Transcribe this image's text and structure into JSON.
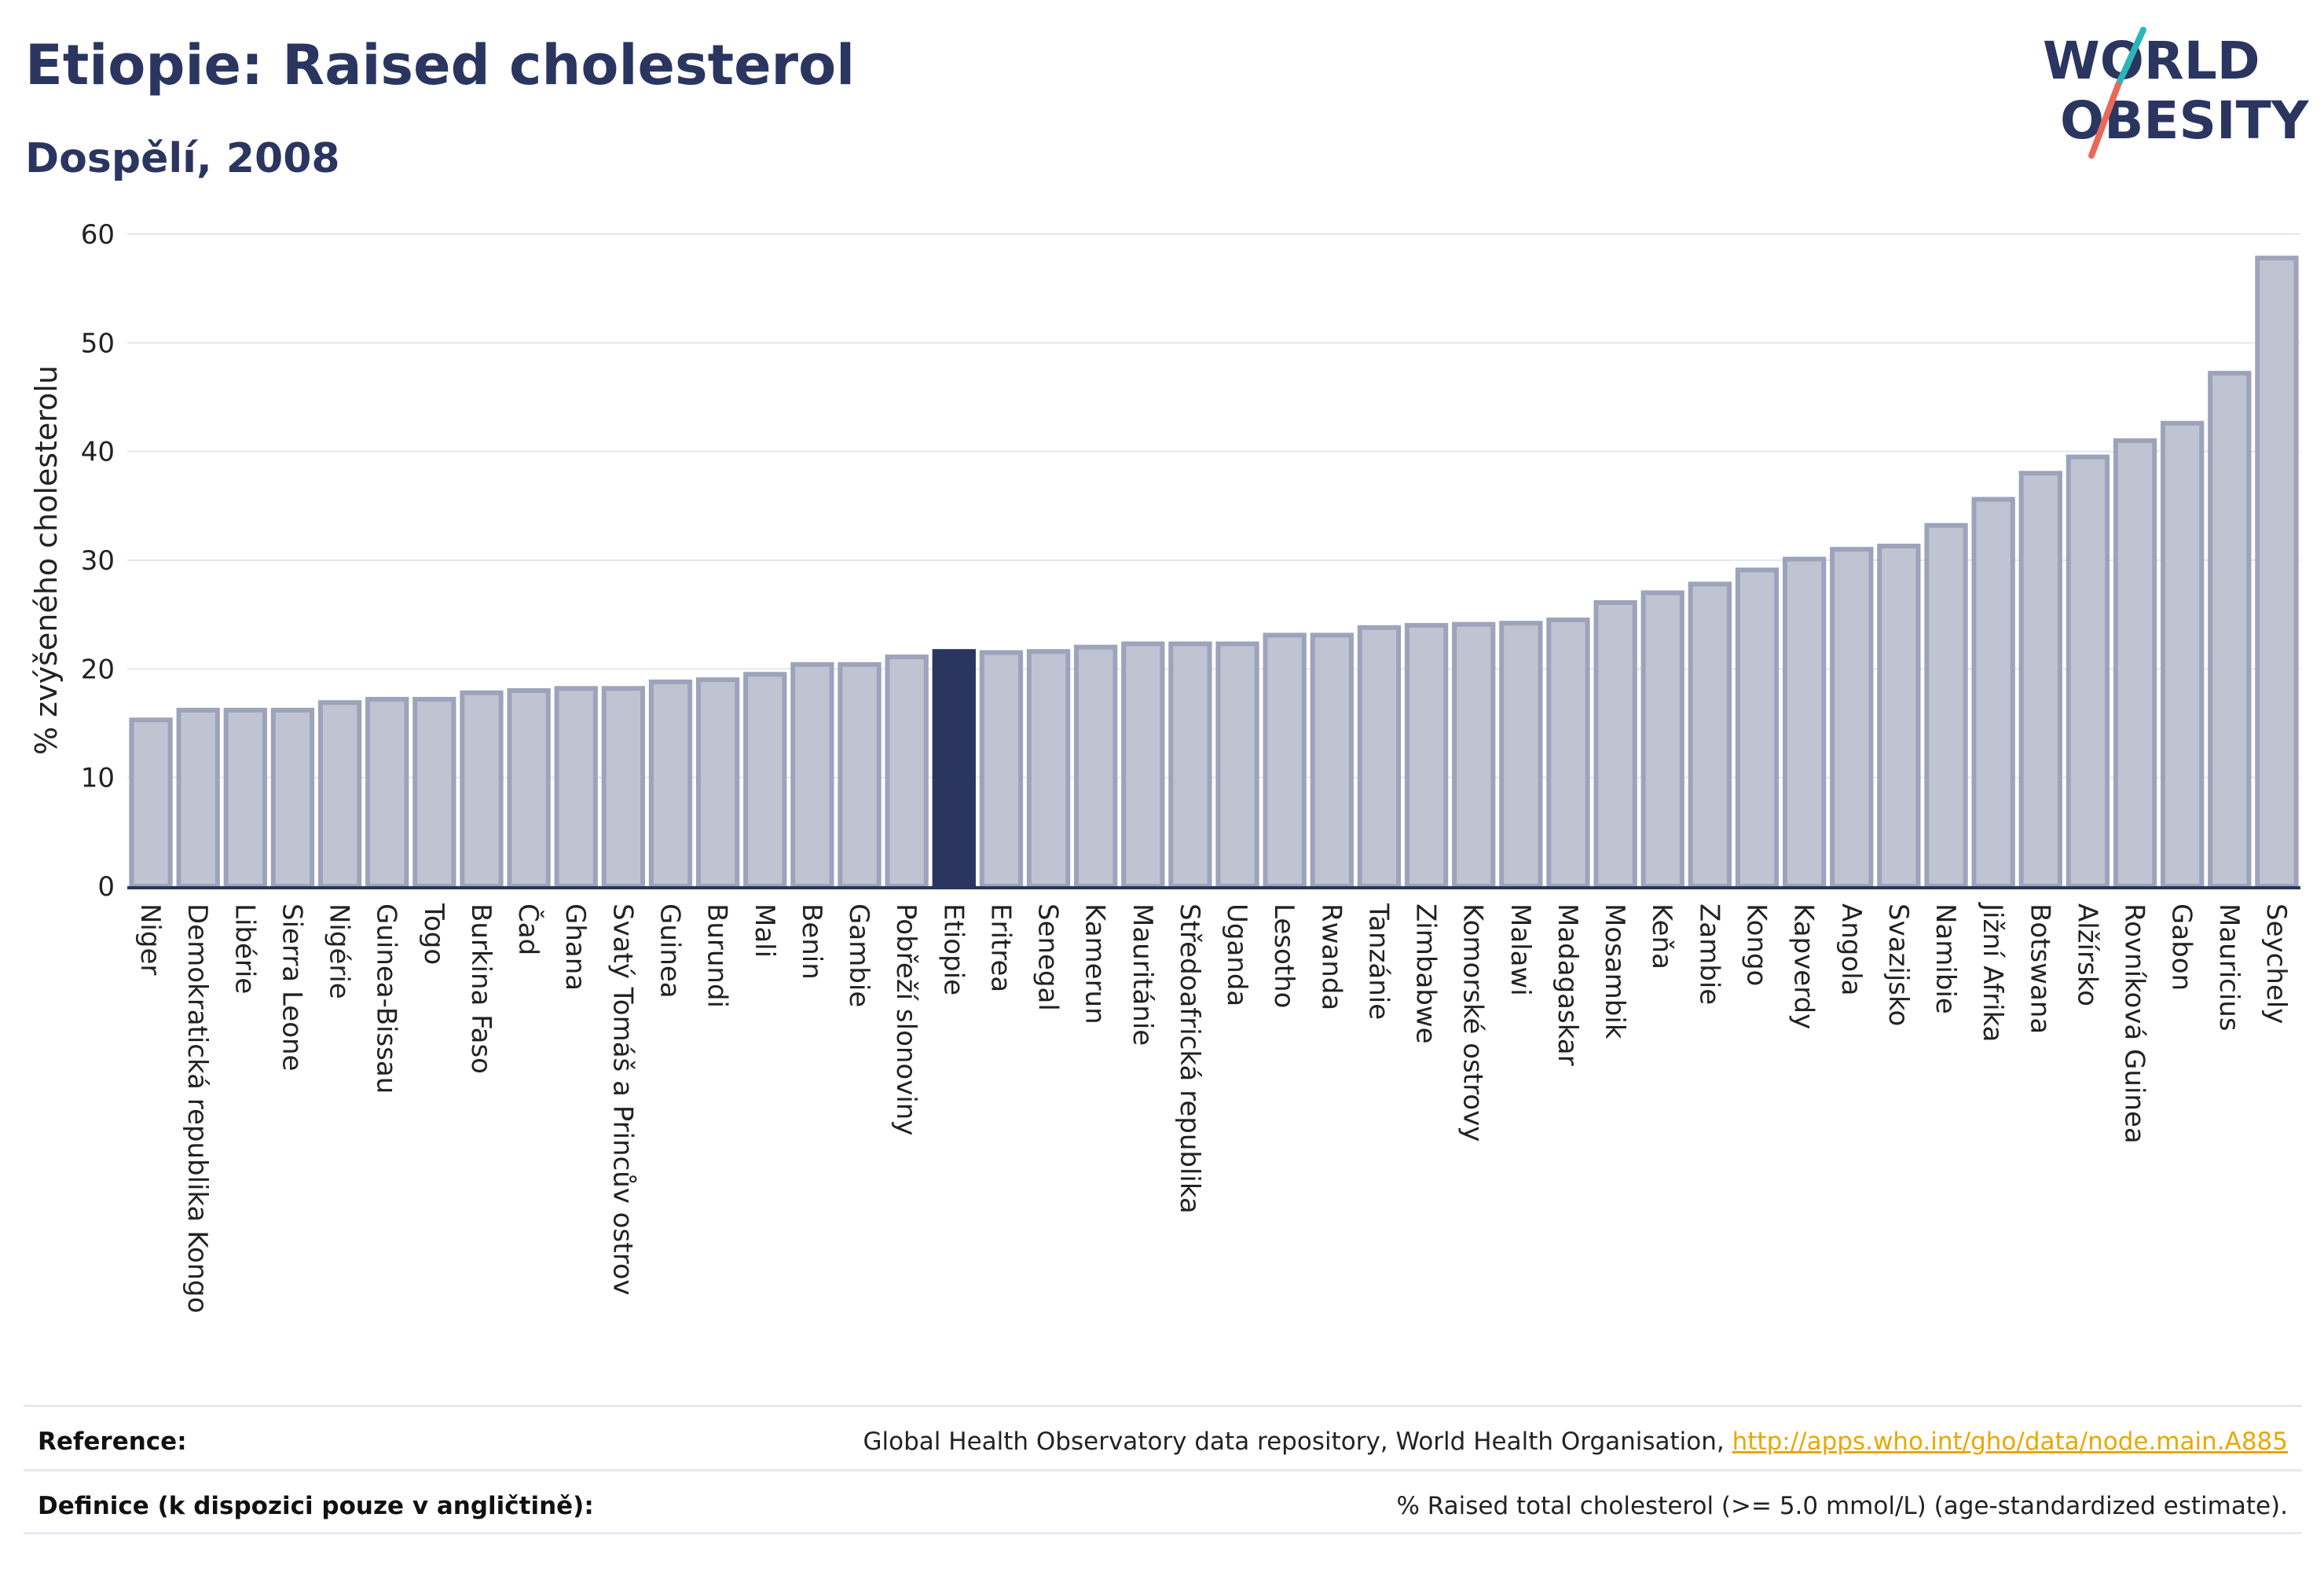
{
  "header": {
    "title": "Etiopie: Raised cholesterol",
    "subtitle": "Dospělí, 2008"
  },
  "logo": {
    "line1": "WORLD",
    "line2": "OBESITY",
    "colors": {
      "text": "#2a3560",
      "slash_teal": "#2bb5b8",
      "slash_red": "#e8695a"
    }
  },
  "colors": {
    "bar": "#c0c4d2",
    "bar_stroke": "#9da3ba",
    "highlight": "#2a3560",
    "grid": "#e4e6ee",
    "axis": "#2a3560"
  },
  "chart_data": {
    "type": "bar",
    "ylabel": "% zvýšeného cholesterolu",
    "ylim": [
      0,
      60
    ],
    "yticks": [
      0,
      10,
      20,
      30,
      40,
      50,
      60
    ],
    "grid": true,
    "highlight": "Etiopie",
    "categories": [
      "Niger",
      "Demokratická republika Kongo",
      "Libérie",
      "Sierra Leone",
      "Nigérie",
      "Guinea-Bissau",
      "Togo",
      "Burkina Faso",
      "Čad",
      "Ghana",
      "Svatý Tomáš a Princův ostrov",
      "Guinea",
      "Burundi",
      "Mali",
      "Benin",
      "Gambie",
      "Pobřeží slonoviny",
      "Etiopie",
      "Eritrea",
      "Senegal",
      "Kamerun",
      "Mauritánie",
      "Středoafrická republika",
      "Uganda",
      "Lesotho",
      "Rwanda",
      "Tanzánie",
      "Zimbabwe",
      "Komorské ostrovy",
      "Malawi",
      "Madagaskar",
      "Mosambik",
      "Keňa",
      "Zambie",
      "Kongo",
      "Kapverdy",
      "Angola",
      "Svazijsko",
      "Namibie",
      "Jižní Afrika",
      "Botswana",
      "Alžírsko",
      "Rovníková Guinea",
      "Gabon",
      "Mauricius",
      "Seychely"
    ],
    "values": [
      15.3,
      16.2,
      16.2,
      16.2,
      16.9,
      17.2,
      17.2,
      17.8,
      18.0,
      18.2,
      18.2,
      18.8,
      19.0,
      19.5,
      20.4,
      20.4,
      21.1,
      21.6,
      21.5,
      21.6,
      22.0,
      22.3,
      22.3,
      22.3,
      23.1,
      23.1,
      23.8,
      24.0,
      24.1,
      24.2,
      24.5,
      26.1,
      27.0,
      27.8,
      29.1,
      30.1,
      31.0,
      31.3,
      33.2,
      35.6,
      38.0,
      39.5,
      41.0,
      42.6,
      47.2,
      57.8
    ]
  },
  "footer": {
    "reference_label": "Reference:",
    "reference_text": "Global Health Observatory data repository, World Health Organisation, ",
    "reference_link": "http://apps.who.int/gho/data/node.main.A885",
    "definition_label": "Definice (k dispozici pouze v angličtině):",
    "definition_text": "% Raised total cholesterol (>= 5.0 mmol/L) (age-standardized estimate)."
  }
}
